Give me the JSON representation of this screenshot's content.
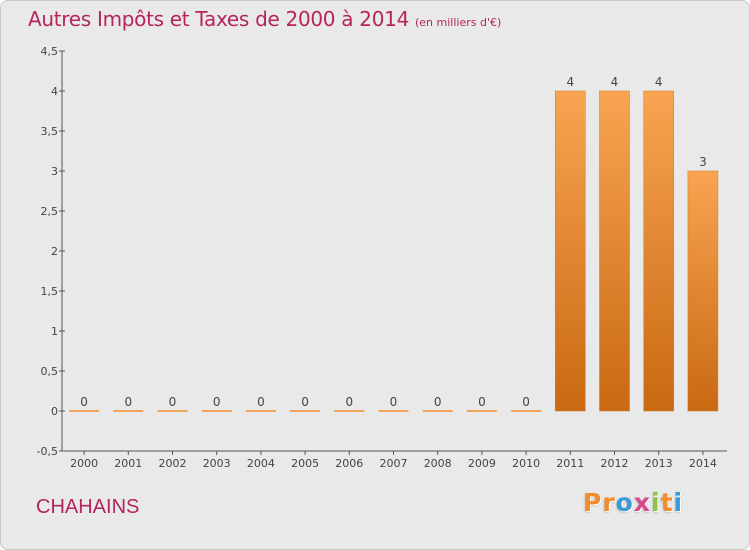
{
  "chart_data": {
    "type": "bar",
    "title": "Autres Impôts et Taxes de 2000 à 2014",
    "subtitle": "(en milliers d'€)",
    "categories": [
      "2000",
      "2001",
      "2002",
      "2003",
      "2004",
      "2005",
      "2006",
      "2007",
      "2008",
      "2009",
      "2010",
      "2011",
      "2012",
      "2013",
      "2014"
    ],
    "values": [
      0,
      0,
      0,
      0,
      0,
      0,
      0,
      0,
      0,
      0,
      0,
      4,
      4,
      4,
      3
    ],
    "data_labels": [
      "0",
      "0",
      "0",
      "0",
      "0",
      "0",
      "0",
      "0",
      "0",
      "0",
      "0",
      "4",
      "4",
      "4",
      "3"
    ],
    "ylim": [
      -0.5,
      4.5
    ],
    "yticks": [
      -0.5,
      0,
      0.5,
      1,
      1.5,
      2,
      2.5,
      3,
      3.5,
      4,
      4.5
    ],
    "ytick_labels": [
      "-0,5",
      "0",
      "0,5",
      "1",
      "1,5",
      "2",
      "2,5",
      "3",
      "3,5",
      "4",
      "4,5"
    ],
    "grid": false,
    "bar_color": "#f28d2c",
    "legend": "none"
  },
  "footer": {
    "place": "CHAHAINS",
    "logo_letters": [
      "P",
      "r",
      "o",
      "x",
      "i",
      "t",
      "i"
    ],
    "logo_colors": [
      "#f28d2c",
      "#f28d2c",
      "#3a9ad9",
      "#d94a8c",
      "#8cc63f",
      "#f28d2c",
      "#3a9ad9"
    ]
  },
  "colors": {
    "title": "#b5255d",
    "axis": "#555555",
    "label": "#444444"
  }
}
